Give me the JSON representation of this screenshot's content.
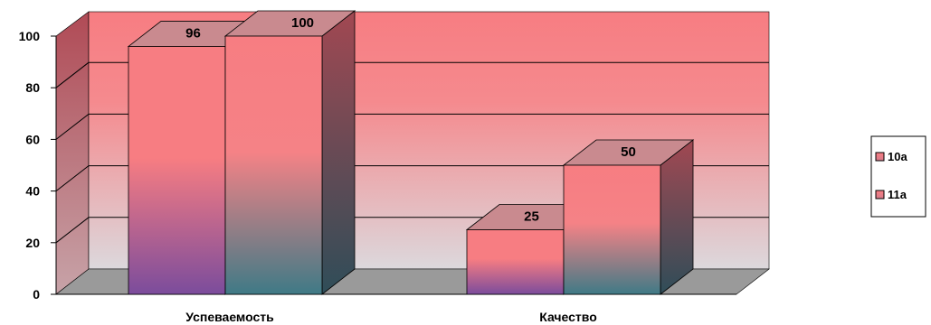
{
  "chart_data": {
    "type": "bar",
    "style": "3d-clustered-column",
    "categories": [
      "Успеваемость",
      "Качество"
    ],
    "series": [
      {
        "name": "10а",
        "values": [
          96,
          25
        ],
        "color": "#f77d82",
        "shade": "#7b4c9c"
      },
      {
        "name": "11а",
        "values": [
          100,
          50
        ],
        "color": "#f77d82",
        "shade": "#3f7a86"
      }
    ],
    "data_labels": [
      "96",
      "100",
      "25",
      "50"
    ],
    "ylim": [
      0,
      100
    ],
    "yticks": [
      "0",
      "20",
      "40",
      "60",
      "80",
      "100"
    ],
    "grid": true,
    "legend": "right",
    "colors": {
      "wall_top": "#f77d82",
      "wall_bottom": "#dcd8dc",
      "floor": "#9a9a9a",
      "gridline": "#000000"
    }
  }
}
